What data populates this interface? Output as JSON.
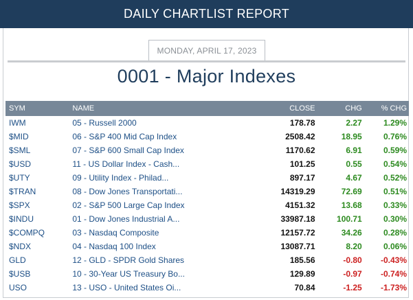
{
  "header": {
    "title": "DAILY CHARTLIST REPORT"
  },
  "date": "MONDAY, APRIL 17, 2023",
  "page_title": "0001 - Major Indexes",
  "columns": {
    "sym": "SYM",
    "name": "NAME",
    "close": "CLOSE",
    "chg": "CHG",
    "pct": "% CHG"
  },
  "colors": {
    "header_bg": "#1f3d5c",
    "table_header_bg": "#778798",
    "positive": "#2c8a1f",
    "negative": "#cc1f1f",
    "link": "#1d4f86"
  },
  "rows": [
    {
      "sym": "IWM",
      "name": "05 - Russell 2000",
      "close": "178.78",
      "chg": "2.27",
      "pct": "1.29%",
      "dir": "pos"
    },
    {
      "sym": "$MID",
      "name": "06 - S&P 400 Mid Cap Index",
      "close": "2508.42",
      "chg": "18.95",
      "pct": "0.76%",
      "dir": "pos"
    },
    {
      "sym": "$SML",
      "name": "07 - S&P 600 Small Cap Index",
      "close": "1170.62",
      "chg": "6.91",
      "pct": "0.59%",
      "dir": "pos"
    },
    {
      "sym": "$USD",
      "name": "11 - US Dollar Index - Cash...",
      "close": "101.25",
      "chg": "0.55",
      "pct": "0.54%",
      "dir": "pos"
    },
    {
      "sym": "$UTY",
      "name": "09 - Utility Index - Philad...",
      "close": "897.17",
      "chg": "4.67",
      "pct": "0.52%",
      "dir": "pos"
    },
    {
      "sym": "$TRAN",
      "name": "08 - Dow Jones Transportati...",
      "close": "14319.29",
      "chg": "72.69",
      "pct": "0.51%",
      "dir": "pos"
    },
    {
      "sym": "$SPX",
      "name": "02 - S&P 500 Large Cap Index",
      "close": "4151.32",
      "chg": "13.68",
      "pct": "0.33%",
      "dir": "pos"
    },
    {
      "sym": "$INDU",
      "name": "01 - Dow Jones Industrial A...",
      "close": "33987.18",
      "chg": "100.71",
      "pct": "0.30%",
      "dir": "pos"
    },
    {
      "sym": "$COMPQ",
      "name": "03 - Nasdaq Composite",
      "close": "12157.72",
      "chg": "34.26",
      "pct": "0.28%",
      "dir": "pos"
    },
    {
      "sym": "$NDX",
      "name": "04 - Nasdaq 100 Index",
      "close": "13087.71",
      "chg": "8.20",
      "pct": "0.06%",
      "dir": "pos"
    },
    {
      "sym": "GLD",
      "name": "12 - GLD - SPDR Gold Shares",
      "close": "185.56",
      "chg": "-0.80",
      "pct": "-0.43%",
      "dir": "neg"
    },
    {
      "sym": "$USB",
      "name": "10 - 30-Year US Treasury Bo...",
      "close": "129.89",
      "chg": "-0.97",
      "pct": "-0.74%",
      "dir": "neg"
    },
    {
      "sym": "USO",
      "name": "13 - USO - United States Oi...",
      "close": "70.84",
      "chg": "-1.25",
      "pct": "-1.73%",
      "dir": "neg"
    }
  ]
}
